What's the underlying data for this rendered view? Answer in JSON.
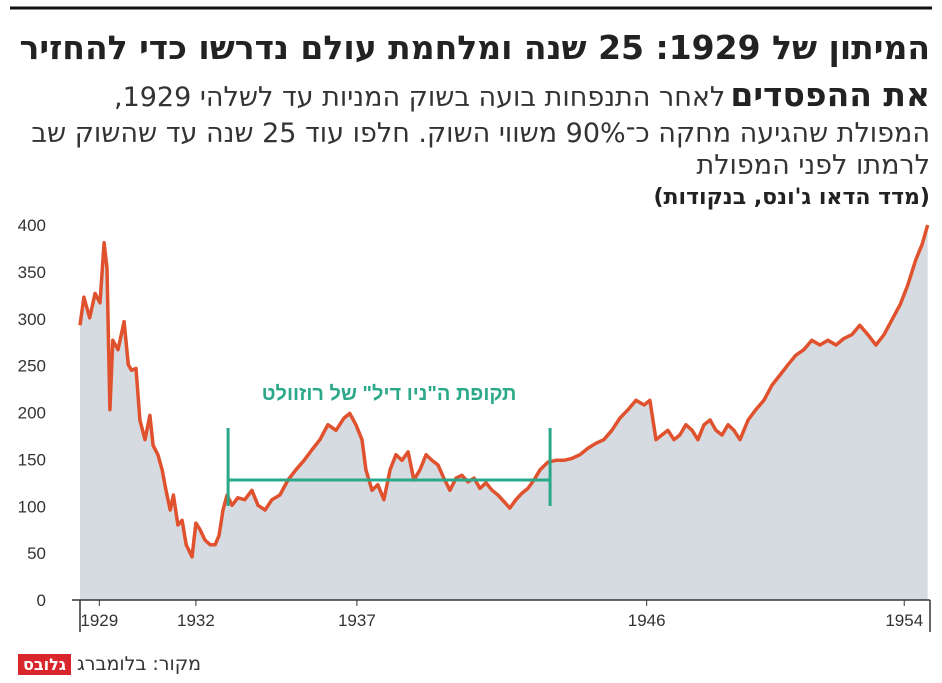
{
  "chart_data": {
    "type": "area",
    "title": "המיתון של 1929: 25 שנה ומלחמת עולם נדרשו כדי להחזיר את ההפסדים",
    "subtitle": "לאחר התנפחות בועה בשוק המניות עד לשלהי 1929, המפולת שהגיעה מחקה כ־90% משווי השוק. חלפו עוד 25 שנה עד שהשוק שב לרמתו לפני המפולת",
    "unit_label": "(מדד הדאו ג'ונס, בנקודות)",
    "source": "מקור: בלומברג",
    "logo": "גלובס",
    "color": "#e0512e",
    "area_color": "#d5dbe0",
    "x": [
      1928.9,
      1929.02,
      1929.2,
      1929.37,
      1929.52,
      1929.65,
      1929.74,
      1929.83,
      1929.92,
      1930.08,
      1930.27,
      1930.4,
      1930.5,
      1930.64,
      1930.76,
      1930.92,
      1931.07,
      1931.17,
      1931.32,
      1931.45,
      1931.57,
      1931.7,
      1931.8,
      1931.94,
      1932.07,
      1932.2,
      1932.38,
      1932.5,
      1932.63,
      1932.78,
      1932.94,
      1933.1,
      1933.22,
      1933.34,
      1933.47,
      1933.62,
      1933.8,
      1934.02,
      1934.24,
      1934.43,
      1934.65,
      1934.86,
      1935.11,
      1935.36,
      1935.61,
      1935.86,
      1936.1,
      1936.35,
      1936.6,
      1936.85,
      1937.1,
      1937.28,
      1937.47,
      1937.66,
      1937.78,
      1937.97,
      1938.15,
      1938.34,
      1938.53,
      1938.71,
      1938.9,
      1939.09,
      1939.27,
      1939.46,
      1939.65,
      1939.83,
      1940.02,
      1940.2,
      1940.39,
      1940.58,
      1940.76,
      1940.95,
      1941.14,
      1941.32,
      1941.51,
      1941.7,
      1941.88,
      1942.07,
      1942.25,
      1942.44,
      1942.63,
      1942.81,
      1943.0,
      1943.19,
      1943.43,
      1943.68,
      1943.93,
      1944.18,
      1944.43,
      1944.68,
      1944.92,
      1945.17,
      1945.42,
      1945.67,
      1945.92,
      1946.17,
      1946.42,
      1946.6,
      1946.79,
      1946.97,
      1947.16,
      1947.35,
      1947.53,
      1947.72,
      1947.91,
      1948.09,
      1948.28,
      1948.47,
      1948.65,
      1948.84,
      1949.03,
      1949.21,
      1949.4,
      1949.65,
      1949.89,
      1950.14,
      1950.39,
      1950.64,
      1950.89,
      1951.13,
      1951.38,
      1951.63,
      1951.88,
      1952.13,
      1952.38,
      1952.63,
      1952.87,
      1953.12,
      1953.37,
      1953.62,
      1953.87,
      1954.12,
      1954.37,
      1954.61,
      1954.86,
      1955.05,
      1955.23
    ],
    "values": [
      293,
      323,
      301,
      327,
      317,
      381,
      354,
      203,
      277,
      267,
      297,
      251,
      245,
      247,
      192,
      171,
      197,
      165,
      155,
      139,
      117,
      96,
      112,
      80,
      85,
      59,
      46,
      82,
      75,
      64,
      59,
      59,
      69,
      96,
      112,
      101,
      109,
      107,
      117,
      101,
      96,
      107,
      112,
      128,
      139,
      149,
      160,
      171,
      187,
      181,
      194,
      199,
      187,
      171,
      139,
      117,
      123,
      107,
      139,
      155,
      149,
      158,
      128,
      139,
      155,
      149,
      144,
      130,
      117,
      130,
      133,
      126,
      130,
      119,
      125,
      117,
      112,
      105,
      98,
      107,
      114,
      119,
      128,
      139,
      147,
      149,
      149,
      151,
      155,
      162,
      167,
      171,
      181,
      194,
      203,
      213,
      208,
      213,
      171,
      176,
      181,
      171,
      176,
      187,
      181,
      171,
      187,
      192,
      181,
      176,
      187,
      181,
      171,
      192,
      203,
      213,
      229,
      240,
      251,
      261,
      267,
      277,
      272,
      277,
      272,
      279,
      283,
      293,
      283,
      272,
      283,
      299,
      315,
      336,
      363,
      379,
      400
    ],
    "xlim": [
      1928.9,
      1955.3
    ],
    "ylim": [
      0,
      400
    ],
    "yticks": [
      0,
      50,
      100,
      150,
      200,
      250,
      300,
      350,
      400
    ],
    "xticks": [
      {
        "value": 1929.5,
        "label": "1929"
      },
      {
        "value": 1932.5,
        "label": "1932"
      },
      {
        "value": 1937.5,
        "label": "1937"
      },
      {
        "value": 1946.5,
        "label": "1946"
      },
      {
        "value": 1954.5,
        "label": "1954"
      }
    ],
    "grid": false,
    "annotation": {
      "text": "תקופת ה\"ניו דיל\" של רוזוולט",
      "x": [
        1933.5,
        1943.5
      ],
      "y": 128,
      "color": "#2aa889"
    }
  }
}
